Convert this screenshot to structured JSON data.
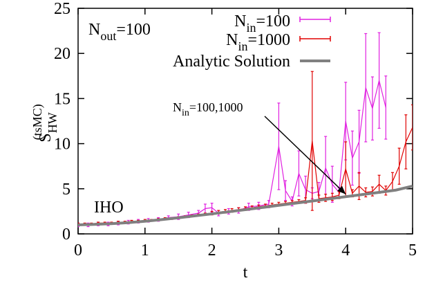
{
  "chart_data": {
    "type": "line",
    "xlabel": "t",
    "ylabel": "S",
    "ylabel_sub": "HW",
    "ylabel_sup": "(tsMC)",
    "xlim": [
      0,
      5
    ],
    "ylim": [
      0,
      25
    ],
    "xticks": [
      0,
      1,
      2,
      3,
      4,
      5
    ],
    "yticks": [
      0,
      5,
      10,
      15,
      20,
      25
    ],
    "xtick_labels": [
      "0",
      "1",
      "2",
      "3",
      "4",
      "5"
    ],
    "ytick_labels": [
      "0",
      "5",
      "10",
      "15",
      "20",
      "25"
    ],
    "grid": false,
    "legend_position": "top-right",
    "annotations": {
      "nout_prefix": "N",
      "nout_sub": "out",
      "nout_value": "=100",
      "iho": "IHO",
      "arrow_prefix": "N",
      "arrow_sub": "in",
      "arrow_value": "=100,1000",
      "arrow_tip": {
        "x": 4.0,
        "y": 4.4
      }
    },
    "series": [
      {
        "name_prefix": "N",
        "name_sub": "in",
        "name_value": "=100",
        "color": "#e020e0",
        "x": [
          0.0,
          0.15,
          0.3,
          0.45,
          0.6,
          0.75,
          0.9,
          1.05,
          1.2,
          1.35,
          1.5,
          1.65,
          1.8,
          1.9,
          2.0,
          2.1,
          2.25,
          2.4,
          2.55,
          2.7,
          2.85,
          3.0,
          3.1,
          3.2,
          3.3,
          3.4,
          3.5,
          3.6,
          3.7,
          3.8,
          3.9,
          4.0,
          4.1,
          4.2,
          4.3,
          4.4,
          4.5,
          4.6
        ],
        "y": [
          1.0,
          1.0,
          1.1,
          1.1,
          1.2,
          1.3,
          1.4,
          1.5,
          1.6,
          1.8,
          1.9,
          2.1,
          2.3,
          2.8,
          2.9,
          2.3,
          2.5,
          2.6,
          3.0,
          3.1,
          3.3,
          9.7,
          4.8,
          3.6,
          6.7,
          4.9,
          4.5,
          4.7,
          7.3,
          5.5,
          4.6,
          12.5,
          8.4,
          10.2,
          16.2,
          13.9,
          17.0,
          14.0
        ],
        "err": [
          0.2,
          0.2,
          0.2,
          0.2,
          0.2,
          0.2,
          0.2,
          0.2,
          0.2,
          0.2,
          0.3,
          0.3,
          0.3,
          0.5,
          0.5,
          0.3,
          0.3,
          0.3,
          0.4,
          0.4,
          0.4,
          4.8,
          1.1,
          0.5,
          2.5,
          1.5,
          0.6,
          1.0,
          3.5,
          2.0,
          0.5,
          4.3,
          3.0,
          3.5,
          6.0,
          3.5,
          5.3,
          3.5
        ]
      },
      {
        "name_prefix": "N",
        "name_sub": "in",
        "name_value": "=1000",
        "color": "#e00000",
        "x": [
          0.0,
          0.1,
          0.2,
          0.3,
          0.4,
          0.5,
          0.6,
          0.7,
          0.8,
          0.9,
          1.0,
          1.1,
          1.2,
          1.3,
          1.4,
          1.5,
          1.6,
          1.7,
          1.8,
          1.9,
          2.0,
          2.1,
          2.2,
          2.3,
          2.4,
          2.5,
          2.6,
          2.7,
          2.8,
          2.9,
          3.0,
          3.1,
          3.2,
          3.3,
          3.4,
          3.5,
          3.6,
          3.7,
          3.8,
          3.9,
          4.0,
          4.1,
          4.2,
          4.3,
          4.4,
          4.5,
          4.6,
          4.7,
          4.8,
          4.9,
          5.0
        ],
        "y": [
          1.1,
          1.1,
          1.1,
          1.2,
          1.2,
          1.2,
          1.3,
          1.3,
          1.4,
          1.4,
          1.5,
          1.5,
          1.6,
          1.7,
          1.7,
          1.8,
          1.9,
          2.0,
          2.1,
          2.2,
          2.3,
          2.4,
          2.5,
          2.6,
          2.7,
          2.8,
          2.9,
          3.0,
          3.1,
          3.2,
          3.3,
          3.4,
          3.5,
          3.6,
          3.7,
          10.3,
          3.9,
          4.0,
          4.1,
          4.3,
          7.2,
          4.5,
          5.3,
          4.6,
          4.7,
          5.5,
          4.8,
          5.8,
          7.5,
          10.2,
          11.8
        ],
        "err": [
          0.1,
          0.1,
          0.1,
          0.1,
          0.1,
          0.1,
          0.1,
          0.1,
          0.1,
          0.1,
          0.1,
          0.1,
          0.1,
          0.1,
          0.1,
          0.1,
          0.1,
          0.1,
          0.1,
          0.1,
          0.2,
          0.2,
          0.2,
          0.2,
          0.2,
          0.2,
          0.2,
          0.2,
          0.2,
          0.2,
          0.2,
          0.2,
          0.2,
          0.2,
          0.3,
          7.7,
          0.4,
          0.4,
          0.4,
          0.4,
          3.0,
          0.4,
          1.5,
          0.5,
          0.5,
          1.0,
          0.5,
          1.0,
          2.0,
          3.0,
          2.5
        ]
      },
      {
        "name": "Analytic Solution",
        "color": "#808080",
        "x": [
          0.0,
          0.25,
          0.5,
          0.75,
          1.0,
          1.25,
          1.5,
          1.75,
          2.0,
          2.25,
          2.5,
          2.75,
          3.0,
          3.25,
          3.5,
          3.75,
          4.0,
          4.25,
          4.5,
          4.75,
          5.0
        ],
        "y": [
          1.0,
          1.05,
          1.13,
          1.25,
          1.4,
          1.58,
          1.78,
          2.0,
          2.22,
          2.45,
          2.68,
          2.92,
          3.16,
          3.4,
          3.64,
          3.88,
          4.12,
          4.36,
          4.6,
          4.85,
          5.3
        ]
      }
    ]
  }
}
